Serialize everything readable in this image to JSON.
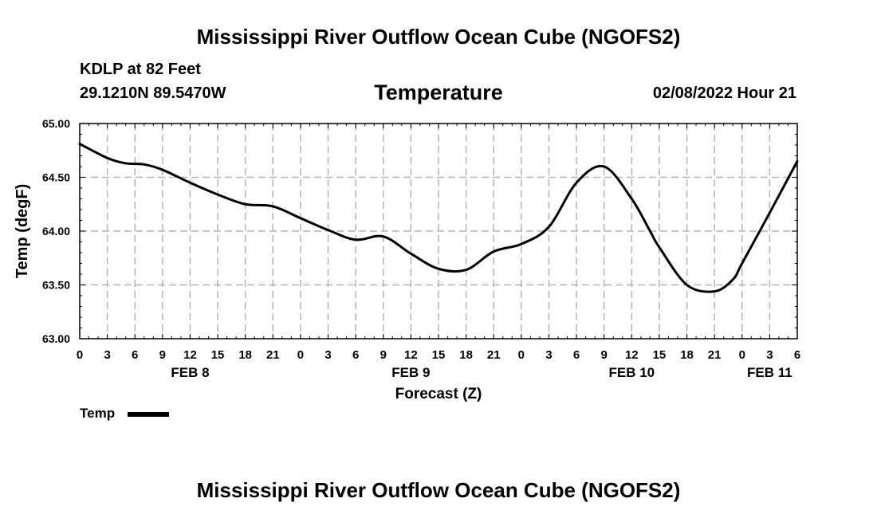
{
  "page": {
    "title": "Mississippi River Outflow Ocean Cube (NGOFS2)",
    "station_line": "KDLP at 82 Feet",
    "coords_line": "29.1210N  89.5470W",
    "parameter": "Temperature",
    "datetime": "02/08/2022 Hour 21",
    "bottom_title": "Mississippi River Outflow Ocean Cube (NGOFS2)"
  },
  "colors": {
    "line": "#000000",
    "grid": "#b4b4b4",
    "axis": "#000000"
  },
  "chart_data": {
    "type": "line",
    "title": "Temperature",
    "xlabel": "Forecast (Z)",
    "ylabel": "Temp (degF)",
    "xlim": [
      0,
      78
    ],
    "ylim": [
      63.0,
      65.0
    ],
    "yticks": [
      63.0,
      63.5,
      64.0,
      64.5,
      65.0
    ],
    "ytick_labels": [
      "63.00",
      "63.50",
      "64.00",
      "64.50",
      "65.00"
    ],
    "xtick_positions": [
      0,
      3,
      6,
      9,
      12,
      15,
      18,
      21,
      24,
      27,
      30,
      33,
      36,
      39,
      42,
      45,
      48,
      51,
      54,
      57,
      60,
      63,
      66,
      69,
      72,
      75,
      78
    ],
    "xtick_labels": [
      "0",
      "3",
      "6",
      "9",
      "12",
      "15",
      "18",
      "21",
      "0",
      "3",
      "6",
      "9",
      "12",
      "15",
      "18",
      "21",
      "0",
      "3",
      "6",
      "9",
      "12",
      "15",
      "18",
      "21",
      "0",
      "3",
      "6"
    ],
    "date_labels": [
      {
        "at": 12,
        "label": "FEB 8"
      },
      {
        "at": 36,
        "label": "FEB 9"
      },
      {
        "at": 60,
        "label": "FEB 10"
      },
      {
        "at": 75,
        "label": "FEB 11"
      }
    ],
    "grid": true,
    "legend": {
      "placement": "bottom-left",
      "entries": [
        "Temp"
      ]
    },
    "series": [
      {
        "name": "Temp",
        "x": [
          0,
          3,
          5,
          7,
          9,
          12,
          15,
          18,
          21,
          24,
          27,
          30,
          33,
          36,
          39,
          42,
          45,
          48,
          51,
          54,
          57,
          60,
          62,
          63,
          66,
          69,
          71,
          72,
          75,
          78
        ],
        "values": [
          64.81,
          64.68,
          64.63,
          64.62,
          64.57,
          64.45,
          64.34,
          64.25,
          64.23,
          64.12,
          64.01,
          63.92,
          63.95,
          63.79,
          63.65,
          63.64,
          63.81,
          63.88,
          64.04,
          64.45,
          64.6,
          64.3,
          64.0,
          63.85,
          63.5,
          63.44,
          63.55,
          63.7,
          64.17,
          64.65
        ]
      }
    ]
  }
}
